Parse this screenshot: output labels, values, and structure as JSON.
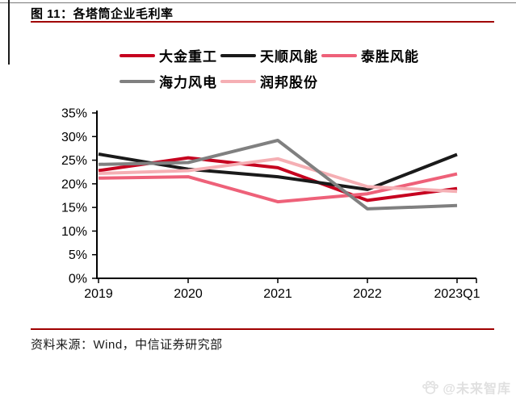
{
  "page": {
    "title": "图 11：各塔筒企业毛利率",
    "source": "资料来源：Wind，中信证券研究部",
    "watermark": "@未来智库",
    "accent_color": "#a00000"
  },
  "chart_data": {
    "type": "line",
    "title": "各塔筒企业毛利率",
    "categories": [
      "2019",
      "2020",
      "2021",
      "2022",
      "2023Q1"
    ],
    "series": [
      {
        "name": "大金重工",
        "color": "#c6011f",
        "values": [
          22.8,
          25.5,
          23.4,
          16.5,
          19.0
        ]
      },
      {
        "name": "天顺风能",
        "color": "#1a1a1a",
        "values": [
          26.3,
          23.1,
          21.5,
          18.8,
          26.2
        ]
      },
      {
        "name": "泰胜风能",
        "color": "#ee6179",
        "values": [
          21.2,
          21.5,
          16.2,
          17.9,
          22.1
        ]
      },
      {
        "name": "海力风电",
        "color": "#808080",
        "values": [
          24.1,
          24.5,
          29.2,
          14.7,
          15.4
        ]
      },
      {
        "name": "润邦股份",
        "color": "#f5afb4",
        "values": [
          22.2,
          22.8,
          25.3,
          19.4,
          18.4
        ]
      }
    ],
    "draw_order": [
      0,
      1,
      2,
      4,
      3
    ],
    "legend_rows": [
      [
        0,
        1,
        2
      ],
      [
        3,
        4
      ]
    ],
    "y_ticks": [
      "0%",
      "5%",
      "10%",
      "15%",
      "20%",
      "25%",
      "30%",
      "35%"
    ],
    "ylim": [
      0,
      35
    ],
    "grid": false,
    "legend_position": "top",
    "axis_color": "#000000"
  }
}
